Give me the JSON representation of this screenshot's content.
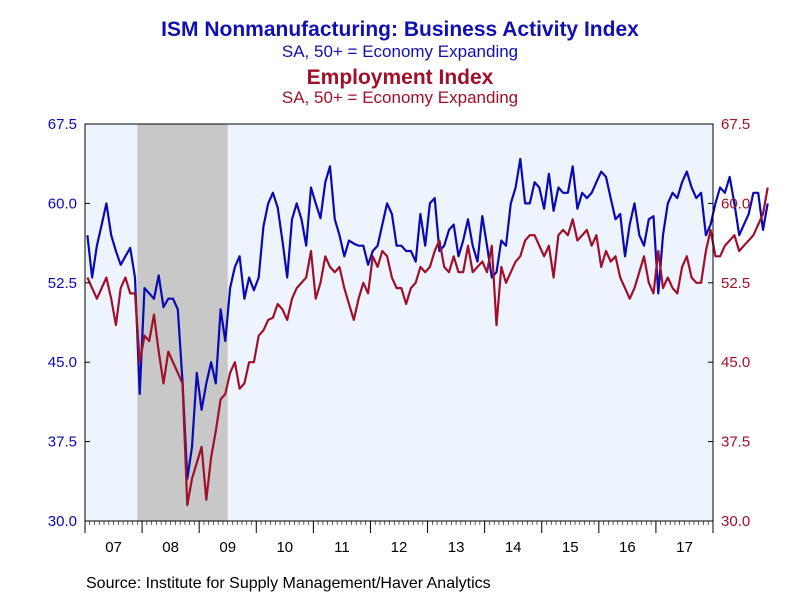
{
  "titles": {
    "main": "ISM Nonmanufacturing: Business Activity Index",
    "main_sub": "SA, 50+ = Economy Expanding",
    "second": "Employment Index",
    "second_sub": "SA, 50+ = Economy Expanding"
  },
  "source": "Source:  Institute for Supply Management/Haver Analytics",
  "colors": {
    "business": "#0a0ab4",
    "employment": "#a0102a",
    "plot_bg": "#eef4fd",
    "recession": "#c8c8c8"
  },
  "chart_data": {
    "type": "line",
    "x_start": "2007-01",
    "x_end": "2017-12",
    "x_tick_labels": [
      "07",
      "08",
      "09",
      "10",
      "11",
      "12",
      "13",
      "14",
      "15",
      "16",
      "17"
    ],
    "ylim": [
      30.0,
      67.5
    ],
    "y_ticks": [
      "30.0",
      "37.5",
      "45.0",
      "52.5",
      "60.0",
      "67.5"
    ],
    "grid": false,
    "recession_shading": [
      "2007-12",
      "2009-06"
    ],
    "series": [
      {
        "name": "ISM Nonmanufacturing: Business Activity Index",
        "axis": "left",
        "values": [
          57.0,
          53.0,
          56.0,
          58.0,
          60.0,
          57.0,
          55.5,
          54.2,
          55.0,
          55.8,
          53.0,
          42.0,
          52.0,
          51.5,
          51.0,
          53.2,
          50.2,
          51.0,
          51.0,
          50.0,
          43.2,
          34.0,
          37.0,
          44.0,
          40.5,
          43.0,
          45.0,
          43.0,
          50.0,
          47.0,
          52.0,
          54.0,
          55.0,
          51.0,
          53.0,
          51.8,
          53.0,
          57.8,
          60.0,
          61.0,
          59.6,
          56.5,
          53.0,
          58.5,
          60.0,
          58.5,
          56.0,
          61.5,
          60.0,
          58.6,
          62.0,
          63.5,
          58.5,
          57.0,
          55.0,
          56.5,
          56.2,
          56.0,
          56.0,
          54.2,
          55.5,
          56.0,
          58.0,
          60.0,
          59.0,
          56.0,
          56.0,
          55.5,
          55.5,
          54.5,
          59.0,
          56.0,
          60.0,
          60.5,
          55.5,
          56.0,
          57.5,
          58.0,
          55.0,
          56.5,
          58.5,
          56.0,
          54.5,
          58.8,
          56.0,
          53.0,
          53.5,
          56.5,
          56.0,
          60.0,
          61.5,
          64.2,
          60.0,
          60.0,
          62.0,
          61.5,
          59.5,
          62.8,
          59.3,
          61.5,
          61.0,
          61.0,
          63.5,
          59.5,
          61.0,
          60.5,
          61.0,
          62.0,
          63.0,
          62.5,
          60.5,
          58.5,
          59.0,
          55.0,
          58.0,
          60.0,
          57.0,
          56.0,
          58.5,
          58.8,
          51.5,
          57.0,
          60.0,
          61.0,
          60.5,
          62.0,
          63.0,
          61.5,
          60.5,
          61.0,
          57.0,
          58.0,
          60.0,
          61.5,
          61.0,
          62.5,
          60.0,
          57.0,
          58.0,
          59.0,
          61.0,
          61.0,
          57.5,
          60.0
        ]
      },
      {
        "name": "Employment Index",
        "axis": "right",
        "values": [
          53.0,
          52.0,
          51.0,
          52.0,
          53.0,
          51.0,
          48.5,
          52.0,
          53.0,
          51.5,
          51.5,
          45.0,
          47.5,
          47.0,
          49.5,
          46.0,
          43.0,
          46.0,
          45.0,
          44.0,
          43.0,
          31.5,
          34.0,
          35.5,
          37.0,
          32.0,
          36.0,
          38.5,
          41.5,
          42.0,
          44.0,
          45.0,
          42.5,
          43.0,
          45.0,
          45.0,
          47.5,
          48.0,
          49.0,
          49.2,
          50.5,
          50.0,
          49.0,
          51.0,
          52.0,
          52.5,
          53.0,
          55.5,
          51.0,
          52.5,
          55.0,
          54.0,
          53.5,
          54.0,
          52.0,
          50.5,
          49.0,
          51.0,
          52.5,
          51.5,
          55.0,
          54.0,
          55.5,
          55.0,
          53.0,
          52.0,
          52.0,
          50.5,
          52.0,
          52.5,
          54.0,
          53.5,
          54.0,
          55.5,
          56.5,
          54.0,
          53.5,
          55.0,
          53.5,
          53.5,
          56.0,
          53.5,
          54.0,
          54.5,
          53.5,
          56.0,
          48.5,
          54.0,
          52.5,
          53.5,
          54.5,
          55.0,
          56.5,
          57.0,
          57.0,
          56.0,
          55.0,
          56.0,
          53.0,
          57.0,
          57.5,
          57.0,
          58.5,
          56.5,
          57.0,
          57.5,
          56.0,
          57.0,
          54.0,
          55.5,
          54.5,
          55.0,
          53.0,
          52.0,
          51.0,
          52.0,
          53.5,
          55.0,
          52.5,
          51.5,
          55.5,
          52.0,
          53.0,
          52.0,
          51.5,
          54.0,
          55.0,
          53.0,
          52.5,
          52.5,
          55.5,
          57.5,
          55.0,
          55.0,
          56.0,
          56.5,
          57.0,
          55.5,
          56.0,
          56.5,
          57.0,
          58.0,
          59.0,
          61.5
        ]
      }
    ]
  }
}
